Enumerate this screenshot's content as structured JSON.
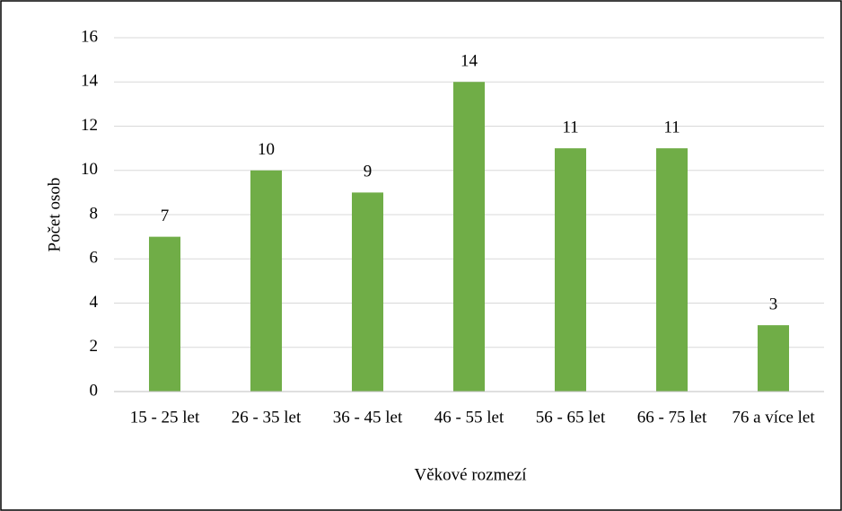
{
  "chart_data": {
    "type": "bar",
    "categories": [
      "15 - 25 let",
      "26 - 35 let",
      "36 - 45 let",
      "46 - 55 let",
      "56 - 65 let",
      "66 - 75 let",
      "76 a více let"
    ],
    "values": [
      7,
      10,
      9,
      14,
      11,
      11,
      3
    ],
    "color": "#70ad47",
    "ylim": [
      0,
      16
    ],
    "yticks": [
      0,
      2,
      4,
      6,
      8,
      10,
      12,
      14,
      16
    ],
    "grid": true,
    "y_label": "Počet osob",
    "x_label": "Věkové rozmezí"
  }
}
